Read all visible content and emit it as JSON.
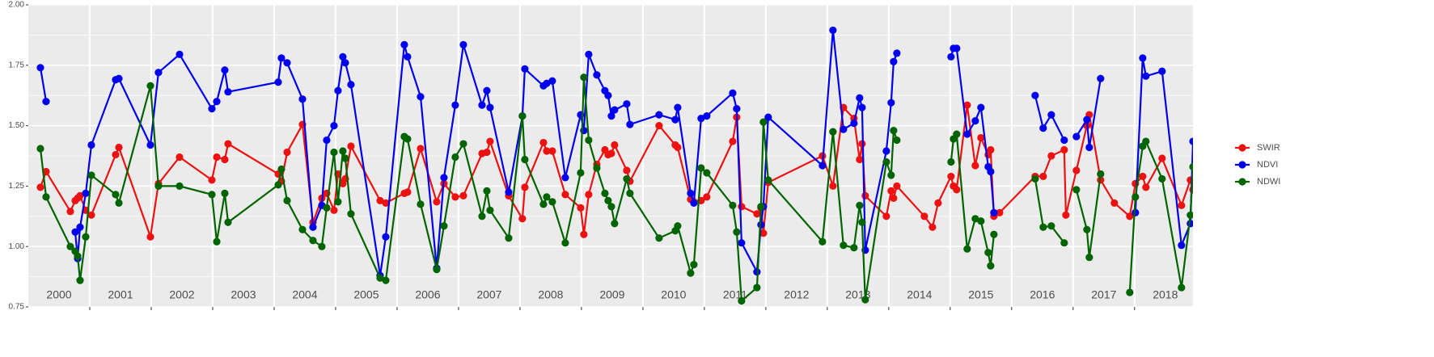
{
  "chart_data": {
    "type": "line",
    "x": [
      2000.197,
      2000.289,
      2000.684,
      2000.763,
      2000.803,
      2000.842,
      2000.934,
      2001.026,
      2001.421,
      2001.474,
      2001.987,
      2002.118,
      2002.461,
      2002.987,
      2003.066,
      2003.197,
      2003.25,
      2004.066,
      2004.118,
      2004.211,
      2004.461,
      2004.632,
      2004.776,
      2004.855,
      2004.974,
      2005.039,
      2005.118,
      2005.158,
      2005.25,
      2005.724,
      2005.816,
      2006.118,
      2006.171,
      2006.382,
      2006.645,
      2006.763,
      2006.947,
      2007.079,
      2007.382,
      2007.461,
      2007.513,
      2007.816,
      2008.039,
      2008.079,
      2008.382,
      2008.434,
      2008.526,
      2008.737,
      2008.987,
      2009.039,
      2009.118,
      2009.25,
      2009.382,
      2009.434,
      2009.487,
      2009.539,
      2009.737,
      2009.789,
      2010.263,
      2010.526,
      2010.566,
      2010.776,
      2010.829,
      2010.947,
      2011.039,
      2011.461,
      2011.526,
      2011.605,
      2011.855,
      2011.921,
      2011.961,
      2012.039,
      2012.921,
      2013.092,
      2013.263,
      2013.434,
      2013.526,
      2013.566,
      2013.618,
      2013.961,
      2014.039,
      2014.079,
      2014.132,
      2014.579,
      2014.711,
      2014.803,
      2015.013,
      2015.053,
      2015.105,
      2015.276,
      2015.408,
      2015.5,
      2015.618,
      2015.658,
      2015.711,
      2015.803,
      2016.382,
      2016.513,
      2016.645,
      2016.855,
      2016.882,
      2017.053,
      2017.224,
      2017.263,
      2017.447,
      2017.671,
      2017.921,
      2018.013,
      2018.132,
      2018.184,
      2018.447,
      2018.763,
      2018.908,
      2018.95
    ],
    "series": [
      {
        "name": "SWIR",
        "color": "#ee1111",
        "values": [
          1.245,
          1.31,
          1.145,
          1.19,
          1.2,
          1.21,
          1.15,
          1.13,
          1.38,
          1.41,
          1.04,
          1.26,
          1.37,
          1.275,
          1.37,
          1.36,
          1.425,
          1.3,
          1.27,
          1.39,
          1.505,
          1.1,
          1.2,
          1.22,
          1.15,
          1.3,
          1.26,
          1.28,
          1.415,
          1.19,
          1.18,
          1.22,
          1.225,
          1.405,
          1.185,
          1.26,
          1.205,
          1.21,
          1.385,
          1.39,
          1.435,
          1.21,
          1.115,
          1.245,
          1.43,
          1.395,
          1.395,
          1.215,
          1.16,
          1.05,
          1.215,
          1.34,
          1.4,
          1.38,
          1.385,
          1.42,
          1.315,
          1.27,
          1.5,
          1.42,
          1.41,
          1.195,
          1.185,
          1.19,
          1.205,
          1.435,
          1.535,
          1.165,
          1.135,
          1.16,
          1.055,
          1.265,
          1.375,
          1.25,
          1.575,
          1.53,
          1.36,
          1.425,
          1.21,
          1.125,
          1.23,
          1.2,
          1.25,
          1.125,
          1.08,
          1.18,
          1.29,
          1.25,
          1.235,
          1.585,
          1.335,
          1.45,
          1.38,
          1.4,
          1.125,
          1.14,
          1.29,
          1.29,
          1.375,
          1.4,
          1.13,
          1.315,
          1.5,
          1.545,
          1.275,
          1.18,
          1.125,
          1.26,
          1.29,
          1.245,
          1.365,
          1.17,
          1.275,
          1.235
        ]
      },
      {
        "name": "NDVI",
        "color": "#0000ee",
        "values": [
          1.74,
          1.6,
          null,
          1.06,
          0.95,
          1.08,
          1.22,
          1.42,
          1.69,
          1.695,
          1.42,
          1.72,
          1.795,
          1.57,
          1.6,
          1.73,
          1.64,
          1.68,
          1.78,
          1.76,
          1.61,
          1.08,
          1.17,
          1.44,
          1.5,
          1.645,
          1.785,
          1.76,
          1.67,
          0.88,
          1.04,
          1.835,
          1.785,
          1.62,
          0.91,
          1.285,
          1.585,
          1.835,
          1.585,
          1.645,
          1.575,
          1.225,
          1.54,
          1.735,
          1.665,
          1.675,
          1.685,
          1.285,
          1.545,
          1.48,
          1.795,
          1.71,
          1.645,
          1.625,
          1.54,
          1.565,
          1.59,
          1.505,
          1.545,
          1.525,
          1.575,
          1.22,
          1.18,
          1.53,
          1.54,
          1.635,
          1.57,
          1.015,
          0.895,
          1.09,
          1.165,
          1.535,
          1.335,
          1.895,
          1.485,
          1.51,
          1.615,
          1.575,
          0.985,
          1.395,
          1.595,
          1.765,
          1.8,
          null,
          null,
          null,
          1.785,
          1.82,
          1.82,
          1.465,
          1.52,
          1.575,
          1.33,
          1.31,
          1.14,
          null,
          1.625,
          1.49,
          1.545,
          1.44,
          null,
          1.455,
          1.525,
          1.41,
          1.695,
          null,
          null,
          1.14,
          1.78,
          1.705,
          1.725,
          1.005,
          1.095,
          1.435
        ]
      },
      {
        "name": "NDWI",
        "color": "#006400",
        "values": [
          1.405,
          1.205,
          1.0,
          0.98,
          0.96,
          0.86,
          1.04,
          1.295,
          1.215,
          1.18,
          1.665,
          1.25,
          1.25,
          1.215,
          1.02,
          1.22,
          1.1,
          1.255,
          1.32,
          1.19,
          1.07,
          1.025,
          1.0,
          1.16,
          1.39,
          1.185,
          1.395,
          1.365,
          1.135,
          0.87,
          0.86,
          1.455,
          1.445,
          1.175,
          0.905,
          1.085,
          1.37,
          1.425,
          1.125,
          1.23,
          1.15,
          1.035,
          1.54,
          1.36,
          1.175,
          1.205,
          1.185,
          1.015,
          1.305,
          1.7,
          1.44,
          1.325,
          1.22,
          1.19,
          1.165,
          1.095,
          1.28,
          1.22,
          1.035,
          1.065,
          1.085,
          0.89,
          0.925,
          1.325,
          1.305,
          1.17,
          1.06,
          0.775,
          0.83,
          1.165,
          1.515,
          1.275,
          1.02,
          1.475,
          1.005,
          0.995,
          1.17,
          1.1,
          0.78,
          1.35,
          1.295,
          1.48,
          1.44,
          null,
          null,
          null,
          1.35,
          1.445,
          1.465,
          0.99,
          1.115,
          1.105,
          0.975,
          0.92,
          1.05,
          null,
          1.28,
          1.08,
          1.085,
          1.015,
          null,
          1.235,
          1.07,
          0.955,
          1.3,
          null,
          0.81,
          1.205,
          1.415,
          1.435,
          1.28,
          0.83,
          1.13,
          1.33
        ]
      }
    ],
    "xlim": [
      2000,
      2018.95
    ],
    "xticks": [
      2001,
      2002,
      2003,
      2004,
      2005,
      2006,
      2007,
      2008,
      2009,
      2010,
      2011,
      2012,
      2013,
      2014,
      2015,
      2016,
      2017,
      2018
    ],
    "year_labels": [
      2000,
      2001,
      2002,
      2003,
      2004,
      2005,
      2006,
      2007,
      2008,
      2009,
      2010,
      2011,
      2012,
      2013,
      2014,
      2015,
      2016,
      2017,
      2018
    ],
    "ylim": [
      0.75,
      2.0
    ],
    "yticks": [
      {
        "value": 0.75,
        "label": "0.75"
      },
      {
        "value": 1.0,
        "label": "1.00"
      },
      {
        "value": 1.25,
        "label": "1.25"
      },
      {
        "value": 1.5,
        "label": "1.50"
      },
      {
        "value": 1.75,
        "label": "1.75"
      },
      {
        "value": 2.0,
        "label": "2.00"
      }
    ],
    "grid": true,
    "legend": "right"
  }
}
